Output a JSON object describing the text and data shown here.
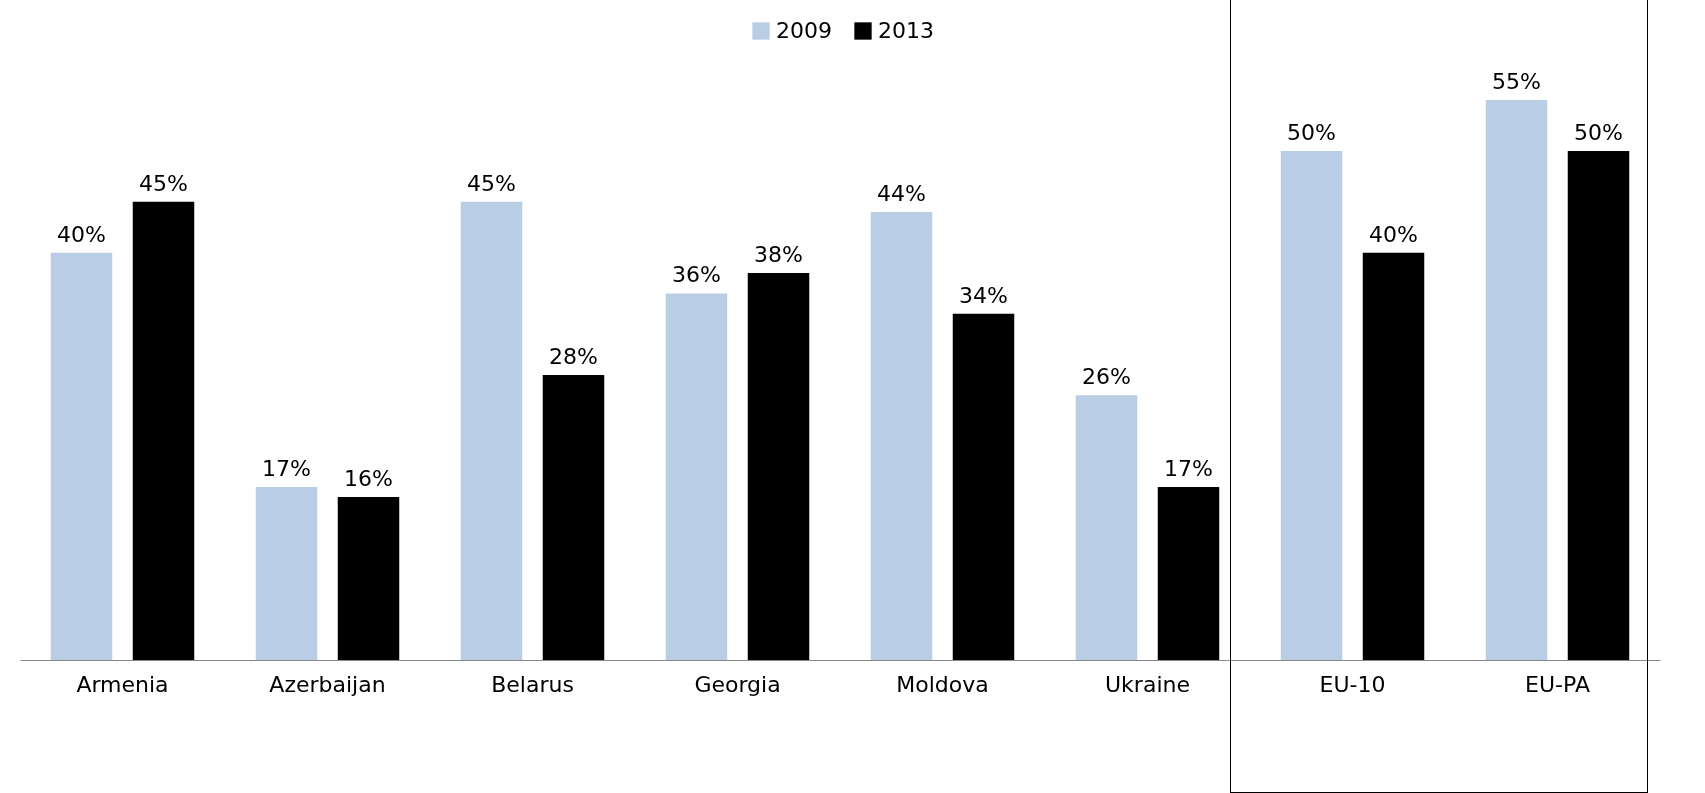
{
  "chart_data": {
    "type": "bar",
    "categories": [
      "Armenia",
      "Azerbaijan",
      "Belarus",
      "Georgia",
      "Moldova",
      "Ukraine",
      "EU-10",
      "EU-PA"
    ],
    "series": [
      {
        "name": "2009",
        "color": "#b9cde5",
        "values": [
          40,
          17,
          45,
          36,
          44,
          26,
          50,
          55
        ],
        "value_labels": [
          "40%",
          "17%",
          "45%",
          "36%",
          "44%",
          "26%",
          "50%",
          "55%"
        ]
      },
      {
        "name": "2013",
        "color": "#000000",
        "values": [
          45,
          16,
          28,
          38,
          34,
          17,
          40,
          50
        ],
        "value_labels": [
          "45%",
          "16%",
          "28%",
          "38%",
          "34%",
          "17%",
          "40%",
          "50%"
        ]
      }
    ],
    "legend": "top",
    "tick_labels": "x",
    "grid": false
  }
}
